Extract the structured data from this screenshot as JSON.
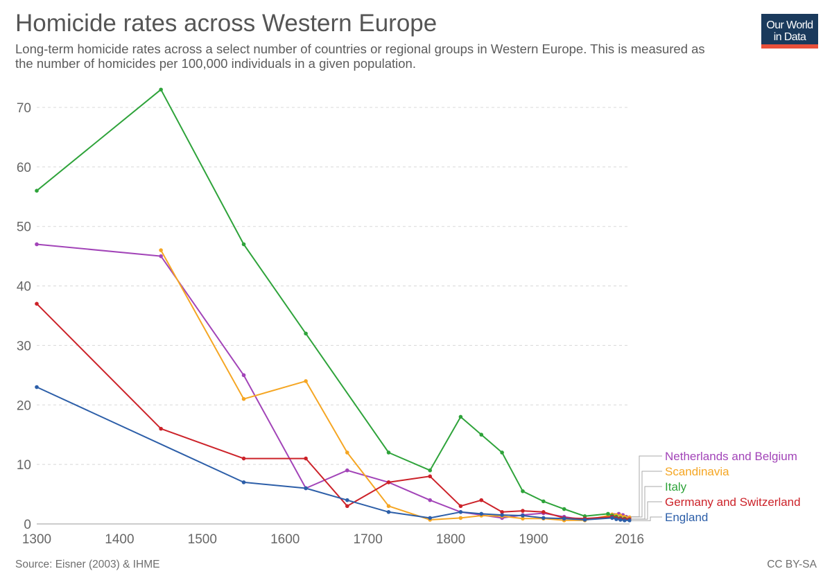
{
  "header": {
    "title": "Homicide rates across Western Europe",
    "subtitle": "Long-term homicide rates across a select number of countries or regional groups in Western Europe. This is measured as the number of homicides per 100,000 individuals in a given population.",
    "logo_line1": "Our World",
    "logo_line2": "in Data"
  },
  "footer": {
    "source": "Source: Eisner (2003) & IHME",
    "license": "CC BY-SA"
  },
  "chart_data": {
    "type": "line",
    "title": "Homicide rates across Western Europe",
    "xlabel": "",
    "ylabel": "",
    "xlim": [
      1300,
      2016
    ],
    "ylim": [
      0,
      70
    ],
    "x_ticks": [
      "1300",
      "1400",
      "1500",
      "1600",
      "1700",
      "1800",
      "1900",
      "2016"
    ],
    "y_ticks": [
      "0",
      "10",
      "20",
      "30",
      "40",
      "50",
      "60",
      "70"
    ],
    "grid": true,
    "legend_position": "right, end-of-line labels",
    "series": [
      {
        "name": "Netherlands and Belgium",
        "color": "#a244b8",
        "points": [
          [
            1300,
            47
          ],
          [
            1450,
            45
          ],
          [
            1550,
            25
          ],
          [
            1625,
            6
          ],
          [
            1675,
            9
          ],
          [
            1725,
            7
          ],
          [
            1775,
            4
          ],
          [
            1812,
            2
          ],
          [
            1837,
            1.5
          ],
          [
            1862,
            1
          ],
          [
            1887,
            1.5
          ],
          [
            1912,
            1.8
          ],
          [
            1937,
            1.2
          ],
          [
            1962,
            0.7
          ],
          [
            1998,
            1.5
          ],
          [
            2003,
            1.7
          ],
          [
            2008,
            1.5
          ],
          [
            2012,
            1.2
          ],
          [
            2016,
            1.1
          ]
        ]
      },
      {
        "name": "Scandinavia",
        "color": "#f5a623",
        "points": [
          [
            1450,
            46
          ],
          [
            1550,
            21
          ],
          [
            1625,
            24
          ],
          [
            1675,
            12
          ],
          [
            1725,
            3
          ],
          [
            1775,
            0.7
          ],
          [
            1812,
            1
          ],
          [
            1837,
            1.4
          ],
          [
            1862,
            1.3
          ],
          [
            1887,
            0.9
          ],
          [
            1912,
            0.9
          ],
          [
            1937,
            0.6
          ],
          [
            1962,
            0.6
          ],
          [
            1990,
            1.4
          ],
          [
            1995,
            1.6
          ],
          [
            2000,
            1.5
          ],
          [
            2005,
            1.4
          ],
          [
            2010,
            1.2
          ],
          [
            2016,
            1.1
          ]
        ]
      },
      {
        "name": "Italy",
        "color": "#2ea33a",
        "points": [
          [
            1300,
            56
          ],
          [
            1450,
            73
          ],
          [
            1550,
            47
          ],
          [
            1625,
            32
          ],
          [
            1725,
            12
          ],
          [
            1775,
            9
          ],
          [
            1812,
            18
          ],
          [
            1837,
            15
          ],
          [
            1862,
            12
          ],
          [
            1887,
            5.5
          ],
          [
            1912,
            3.8
          ],
          [
            1937,
            2.5
          ],
          [
            1962,
            1.3
          ],
          [
            1990,
            1.7
          ],
          [
            1995,
            1.4
          ],
          [
            2000,
            1.2
          ],
          [
            2005,
            1.0
          ],
          [
            2010,
            0.9
          ],
          [
            2016,
            0.8
          ]
        ]
      },
      {
        "name": "Germany and Switzerland",
        "color": "#cc2229",
        "points": [
          [
            1300,
            37
          ],
          [
            1450,
            16
          ],
          [
            1550,
            11
          ],
          [
            1625,
            11
          ],
          [
            1675,
            3
          ],
          [
            1725,
            7
          ],
          [
            1775,
            8
          ],
          [
            1812,
            3
          ],
          [
            1837,
            4
          ],
          [
            1862,
            2
          ],
          [
            1887,
            2.2
          ],
          [
            1912,
            2
          ],
          [
            1937,
            1
          ],
          [
            1962,
            0.9
          ],
          [
            1995,
            1.2
          ],
          [
            2000,
            1.0
          ],
          [
            2005,
            0.9
          ],
          [
            2010,
            0.8
          ],
          [
            2016,
            0.8
          ]
        ]
      },
      {
        "name": "England",
        "color": "#2c5ea8",
        "points": [
          [
            1300,
            23
          ],
          [
            1550,
            7
          ],
          [
            1625,
            6
          ],
          [
            1675,
            4
          ],
          [
            1725,
            2
          ],
          [
            1775,
            1
          ],
          [
            1812,
            2
          ],
          [
            1837,
            1.7
          ],
          [
            1862,
            1.5
          ],
          [
            1887,
            1.4
          ],
          [
            1912,
            1
          ],
          [
            1937,
            0.9
          ],
          [
            1962,
            0.7
          ],
          [
            1995,
            1.0
          ],
          [
            2000,
            0.8
          ],
          [
            2005,
            0.7
          ],
          [
            2010,
            0.6
          ],
          [
            2016,
            0.6
          ]
        ]
      }
    ]
  }
}
